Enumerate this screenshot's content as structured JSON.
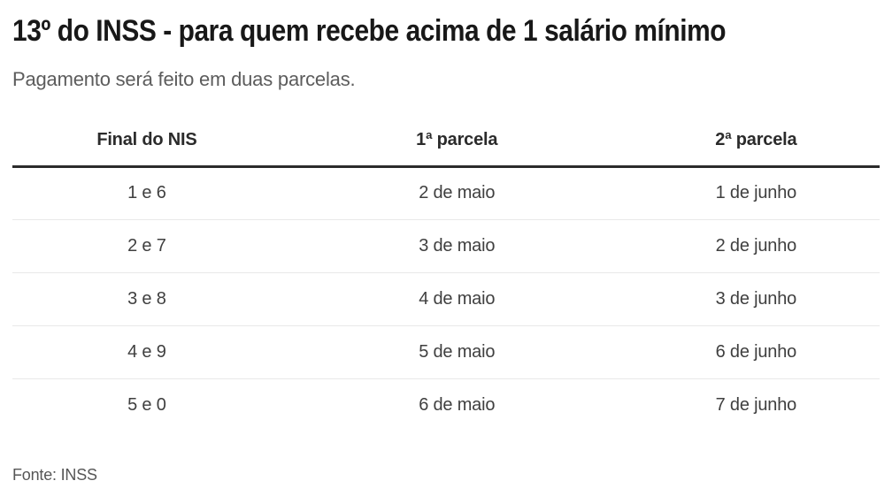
{
  "page": {
    "title": "13º do INSS - para quem recebe acima de 1 salário mínimo",
    "subtitle": "Pagamento será feito em duas parcelas.",
    "source": "Fonte: INSS"
  },
  "table": {
    "columns": [
      "Final do NIS",
      "1ª parcela",
      "2ª parcela"
    ],
    "rows": [
      [
        "1 e 6",
        "2 de maio",
        "1 de junho"
      ],
      [
        "2 e 7",
        "3 de maio",
        "2 de junho"
      ],
      [
        "3 e 8",
        "4 de maio",
        "3 de junho"
      ],
      [
        "4 e 9",
        "5 de maio",
        "6 de junho"
      ],
      [
        "5 e 0",
        "6 de maio",
        "7 de junho"
      ]
    ]
  },
  "chart_data": {
    "type": "table",
    "title": "13º do INSS - para quem recebe acima de 1 salário mínimo",
    "subtitle": "Pagamento será feito em duas parcelas.",
    "columns": [
      "Final do NIS",
      "1ª parcela",
      "2ª parcela"
    ],
    "rows": [
      [
        "1 e 6",
        "2 de maio",
        "1 de junho"
      ],
      [
        "2 e 7",
        "3 de maio",
        "2 de junho"
      ],
      [
        "3 e 8",
        "4 de maio",
        "3 de junho"
      ],
      [
        "4 e 9",
        "5 de maio",
        "6 de junho"
      ],
      [
        "5 e 0",
        "6 de maio",
        "7 de junho"
      ]
    ],
    "source": "Fonte: INSS"
  },
  "colors": {
    "background": "#ffffff",
    "title_text": "#181818",
    "subtitle_text": "#5c5c5c",
    "header_text": "#2b2b2b",
    "cell_text": "#3f3f3f",
    "header_rule": "#2b2b2b",
    "row_rule": "#e9e9e9",
    "source_text": "#565656"
  }
}
